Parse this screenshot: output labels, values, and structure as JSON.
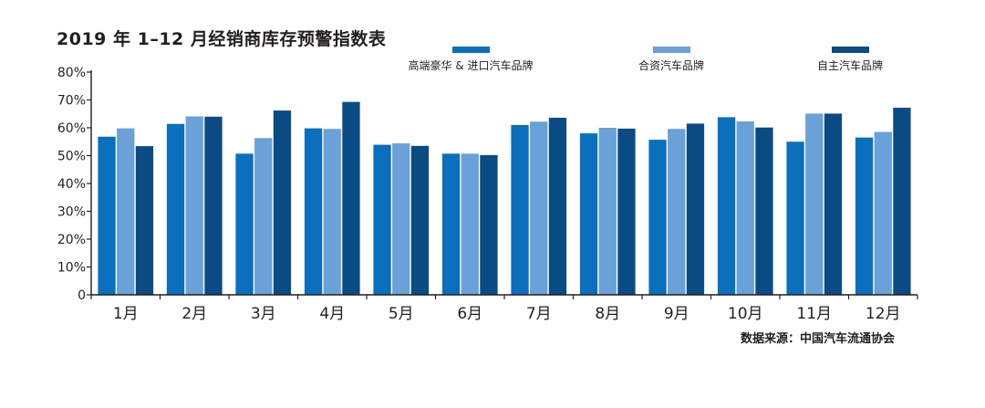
{
  "title": "2019 年 1–12 月经销商库存预警指数表",
  "source": "数据来源：中国汽车流通协会",
  "colors": {
    "axis": "#231f20",
    "text": "#231f20"
  },
  "chart_data": {
    "type": "bar",
    "title": "2019 年 1–12 月经销商库存预警指数表",
    "xlabel": "",
    "ylabel": "",
    "ylim": [
      0,
      80
    ],
    "yticks": [
      "0",
      "10%",
      "20%",
      "30%",
      "40%",
      "50%",
      "60%",
      "70%",
      "80%"
    ],
    "grid": false,
    "legend_position": "top",
    "categories": [
      "1月",
      "2月",
      "3月",
      "4月",
      "5月",
      "6月",
      "7月",
      "8月",
      "9月",
      "10月",
      "11月",
      "12月"
    ],
    "series": [
      {
        "name": "高端豪华 & 进口汽车品牌",
        "color": "#0a6fbd",
        "values": [
          56.8,
          61.4,
          50.7,
          59.8,
          53.9,
          50.7,
          61.0,
          58.0,
          55.7,
          63.8,
          55.0,
          56.5
        ]
      },
      {
        "name": "合资汽车品牌",
        "color": "#6aa1d8",
        "values": [
          59.8,
          64.1,
          56.3,
          59.6,
          54.4,
          50.7,
          62.2,
          60.0,
          59.6,
          62.3,
          65.1,
          58.5
        ]
      },
      {
        "name": "自主汽车品牌",
        "color": "#0b4b84",
        "values": [
          53.4,
          64.0,
          66.2,
          69.3,
          53.5,
          50.2,
          63.6,
          59.7,
          61.5,
          60.1,
          65.1,
          67.2
        ]
      }
    ]
  }
}
